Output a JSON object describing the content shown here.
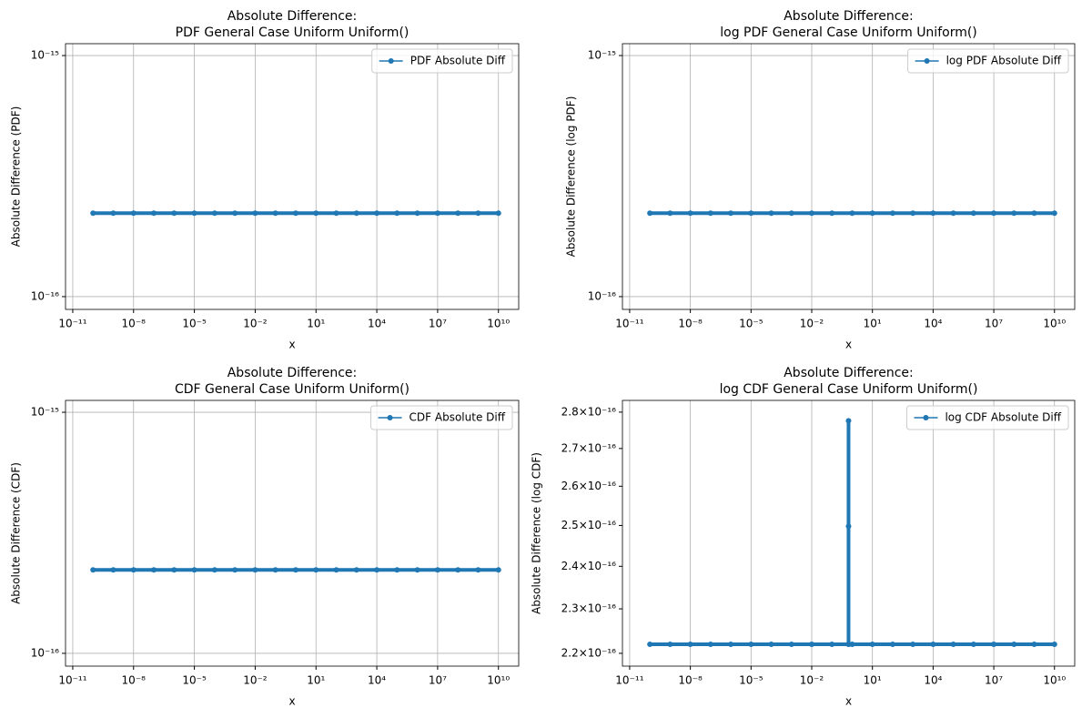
{
  "chart_data": [
    {
      "type": "line",
      "title": [
        "Absolute Difference:",
        "PDF General Case Uniform Uniform()"
      ],
      "xlabel": "x",
      "ylabel": "Absolute Difference (PDF)",
      "xlog": true,
      "ylog": true,
      "xgrid": true,
      "ygrid": true,
      "legend": "upper right",
      "xlim": [
        4.4e-12,
        100000000000.0
      ],
      "ylim": [
        8.85e-17,
        1.12e-15
      ],
      "xticks": [
        {
          "value": 1e-11,
          "label": "10⁻¹¹"
        },
        {
          "value": 1e-08,
          "label": "10⁻⁸"
        },
        {
          "value": 1e-05,
          "label": "10⁻⁵"
        },
        {
          "value": 0.01,
          "label": "10⁻²"
        },
        {
          "value": 10.0,
          "label": "10¹"
        },
        {
          "value": 10000.0,
          "label": "10⁴"
        },
        {
          "value": 10000000.0,
          "label": "10⁷"
        },
        {
          "value": 10000000000.0,
          "label": "10¹⁰"
        }
      ],
      "yticks": [
        {
          "value": 1e-16,
          "label": "10⁻¹⁶"
        },
        {
          "value": 1e-15,
          "label": "10⁻¹⁵"
        }
      ],
      "x": [
        1e-10,
        1e-09,
        1e-08,
        1e-07,
        1e-06,
        1e-05,
        0.0001,
        0.001,
        0.01,
        0.1,
        1,
        10.0,
        100.0,
        1000.0,
        10000.0,
        100000.0,
        1000000.0,
        10000000.0,
        100000000.0,
        1000000000.0,
        10000000000.0
      ],
      "series": [
        {
          "name": "PDF Absolute Diff",
          "color": "#1f77b4",
          "values": [
            2.22e-16,
            2.22e-16,
            2.22e-16,
            2.22e-16,
            2.22e-16,
            2.22e-16,
            2.22e-16,
            2.22e-16,
            2.22e-16,
            2.22e-16,
            2.22e-16,
            2.22e-16,
            2.22e-16,
            2.22e-16,
            2.22e-16,
            2.22e-16,
            2.22e-16,
            2.22e-16,
            2.22e-16,
            2.22e-16,
            2.22e-16
          ]
        }
      ]
    },
    {
      "type": "line",
      "title": [
        "Absolute Difference:",
        "log PDF General Case Uniform Uniform()"
      ],
      "xlabel": "x",
      "ylabel": "Absolute Difference (log PDF)",
      "xlog": true,
      "ylog": true,
      "xgrid": true,
      "ygrid": true,
      "legend": "upper right",
      "xlim": [
        4.4e-12,
        100000000000.0
      ],
      "ylim": [
        8.85e-17,
        1.12e-15
      ],
      "xticks": [
        {
          "value": 1e-11,
          "label": "10⁻¹¹"
        },
        {
          "value": 1e-08,
          "label": "10⁻⁸"
        },
        {
          "value": 1e-05,
          "label": "10⁻⁵"
        },
        {
          "value": 0.01,
          "label": "10⁻²"
        },
        {
          "value": 10.0,
          "label": "10¹"
        },
        {
          "value": 10000.0,
          "label": "10⁴"
        },
        {
          "value": 10000000.0,
          "label": "10⁷"
        },
        {
          "value": 10000000000.0,
          "label": "10¹⁰"
        }
      ],
      "yticks": [
        {
          "value": 1e-16,
          "label": "10⁻¹⁶"
        },
        {
          "value": 1e-15,
          "label": "10⁻¹⁵"
        }
      ],
      "x": [
        1e-10,
        1e-09,
        1e-08,
        1e-07,
        1e-06,
        1e-05,
        0.0001,
        0.001,
        0.01,
        0.1,
        1,
        10.0,
        100.0,
        1000.0,
        10000.0,
        100000.0,
        1000000.0,
        10000000.0,
        100000000.0,
        1000000000.0,
        10000000000.0
      ],
      "series": [
        {
          "name": "log PDF Absolute Diff",
          "color": "#1f77b4",
          "values": [
            2.22e-16,
            2.22e-16,
            2.22e-16,
            2.22e-16,
            2.22e-16,
            2.22e-16,
            2.22e-16,
            2.22e-16,
            2.22e-16,
            2.22e-16,
            2.22e-16,
            2.22e-16,
            2.22e-16,
            2.22e-16,
            2.22e-16,
            2.22e-16,
            2.22e-16,
            2.22e-16,
            2.22e-16,
            2.22e-16,
            2.22e-16
          ]
        }
      ]
    },
    {
      "type": "line",
      "title": [
        "Absolute Difference:",
        "CDF General Case Uniform Uniform()"
      ],
      "xlabel": "x",
      "ylabel": "Absolute Difference (CDF)",
      "xlog": true,
      "ylog": true,
      "xgrid": true,
      "ygrid": true,
      "legend": "upper right",
      "xlim": [
        4.4e-12,
        100000000000.0
      ],
      "ylim": [
        8.85e-17,
        1.12e-15
      ],
      "xticks": [
        {
          "value": 1e-11,
          "label": "10⁻¹¹"
        },
        {
          "value": 1e-08,
          "label": "10⁻⁸"
        },
        {
          "value": 1e-05,
          "label": "10⁻⁵"
        },
        {
          "value": 0.01,
          "label": "10⁻²"
        },
        {
          "value": 10.0,
          "label": "10¹"
        },
        {
          "value": 10000.0,
          "label": "10⁴"
        },
        {
          "value": 10000000.0,
          "label": "10⁷"
        },
        {
          "value": 10000000000.0,
          "label": "10¹⁰"
        }
      ],
      "yticks": [
        {
          "value": 1e-16,
          "label": "10⁻¹⁶"
        },
        {
          "value": 1e-15,
          "label": "10⁻¹⁵"
        }
      ],
      "x": [
        1e-10,
        1e-09,
        1e-08,
        1e-07,
        1e-06,
        1e-05,
        0.0001,
        0.001,
        0.01,
        0.1,
        1,
        10.0,
        100.0,
        1000.0,
        10000.0,
        100000.0,
        1000000.0,
        10000000.0,
        100000000.0,
        1000000000.0,
        10000000000.0
      ],
      "series": [
        {
          "name": "CDF Absolute Diff",
          "color": "#1f77b4",
          "values": [
            2.22e-16,
            2.22e-16,
            2.22e-16,
            2.22e-16,
            2.22e-16,
            2.22e-16,
            2.22e-16,
            2.22e-16,
            2.22e-16,
            2.22e-16,
            2.22e-16,
            2.22e-16,
            2.22e-16,
            2.22e-16,
            2.22e-16,
            2.22e-16,
            2.22e-16,
            2.22e-16,
            2.22e-16,
            2.22e-16,
            2.22e-16
          ]
        }
      ]
    },
    {
      "type": "line",
      "title": [
        "Absolute Difference:",
        "log CDF General Case Uniform Uniform()"
      ],
      "xlabel": "x",
      "ylabel": "Absolute Difference (log CDF)",
      "xlog": true,
      "ylog": true,
      "xgrid": true,
      "ygrid": false,
      "legend": "upper right",
      "xlim": [
        4.4e-12,
        100000000000.0
      ],
      "ylim": [
        2.172e-16,
        2.833e-16
      ],
      "xticks": [
        {
          "value": 1e-11,
          "label": "10⁻¹¹"
        },
        {
          "value": 1e-08,
          "label": "10⁻⁸"
        },
        {
          "value": 1e-05,
          "label": "10⁻⁵"
        },
        {
          "value": 0.01,
          "label": "10⁻²"
        },
        {
          "value": 10.0,
          "label": "10¹"
        },
        {
          "value": 10000.0,
          "label": "10⁴"
        },
        {
          "value": 10000000.0,
          "label": "10⁷"
        },
        {
          "value": 10000000000.0,
          "label": "10¹⁰"
        }
      ],
      "yticks": [
        {
          "value": 2.2e-16,
          "label": "2.2×10⁻¹⁶"
        },
        {
          "value": 2.3e-16,
          "label": "2.3×10⁻¹⁶"
        },
        {
          "value": 2.4e-16,
          "label": "2.4×10⁻¹⁶"
        },
        {
          "value": 2.5e-16,
          "label": "2.5×10⁻¹⁶"
        },
        {
          "value": 2.6e-16,
          "label": "2.6×10⁻¹⁶"
        },
        {
          "value": 2.7e-16,
          "label": "2.7×10⁻¹⁶"
        },
        {
          "value": 2.8e-16,
          "label": "2.8×10⁻¹⁶"
        }
      ],
      "x": [
        1e-10,
        1e-09,
        1e-08,
        1e-07,
        1e-06,
        1e-05,
        0.0001,
        0.001,
        0.01,
        0.1,
        0.66,
        0.66,
        0.66,
        0.66,
        1,
        10.0,
        100.0,
        1000.0,
        10000.0,
        100000.0,
        1000000.0,
        10000000.0,
        100000000.0,
        1000000000.0,
        10000000000.0
      ],
      "series": [
        {
          "name": "log CDF Absolute Diff",
          "color": "#1f77b4",
          "values": [
            2.22e-16,
            2.22e-16,
            2.22e-16,
            2.22e-16,
            2.22e-16,
            2.22e-16,
            2.22e-16,
            2.22e-16,
            2.22e-16,
            2.22e-16,
            2.22e-16,
            2.776e-16,
            2.498e-16,
            2.22e-16,
            2.22e-16,
            2.22e-16,
            2.22e-16,
            2.22e-16,
            2.22e-16,
            2.22e-16,
            2.22e-16,
            2.22e-16,
            2.22e-16,
            2.22e-16,
            2.22e-16
          ]
        }
      ]
    }
  ]
}
